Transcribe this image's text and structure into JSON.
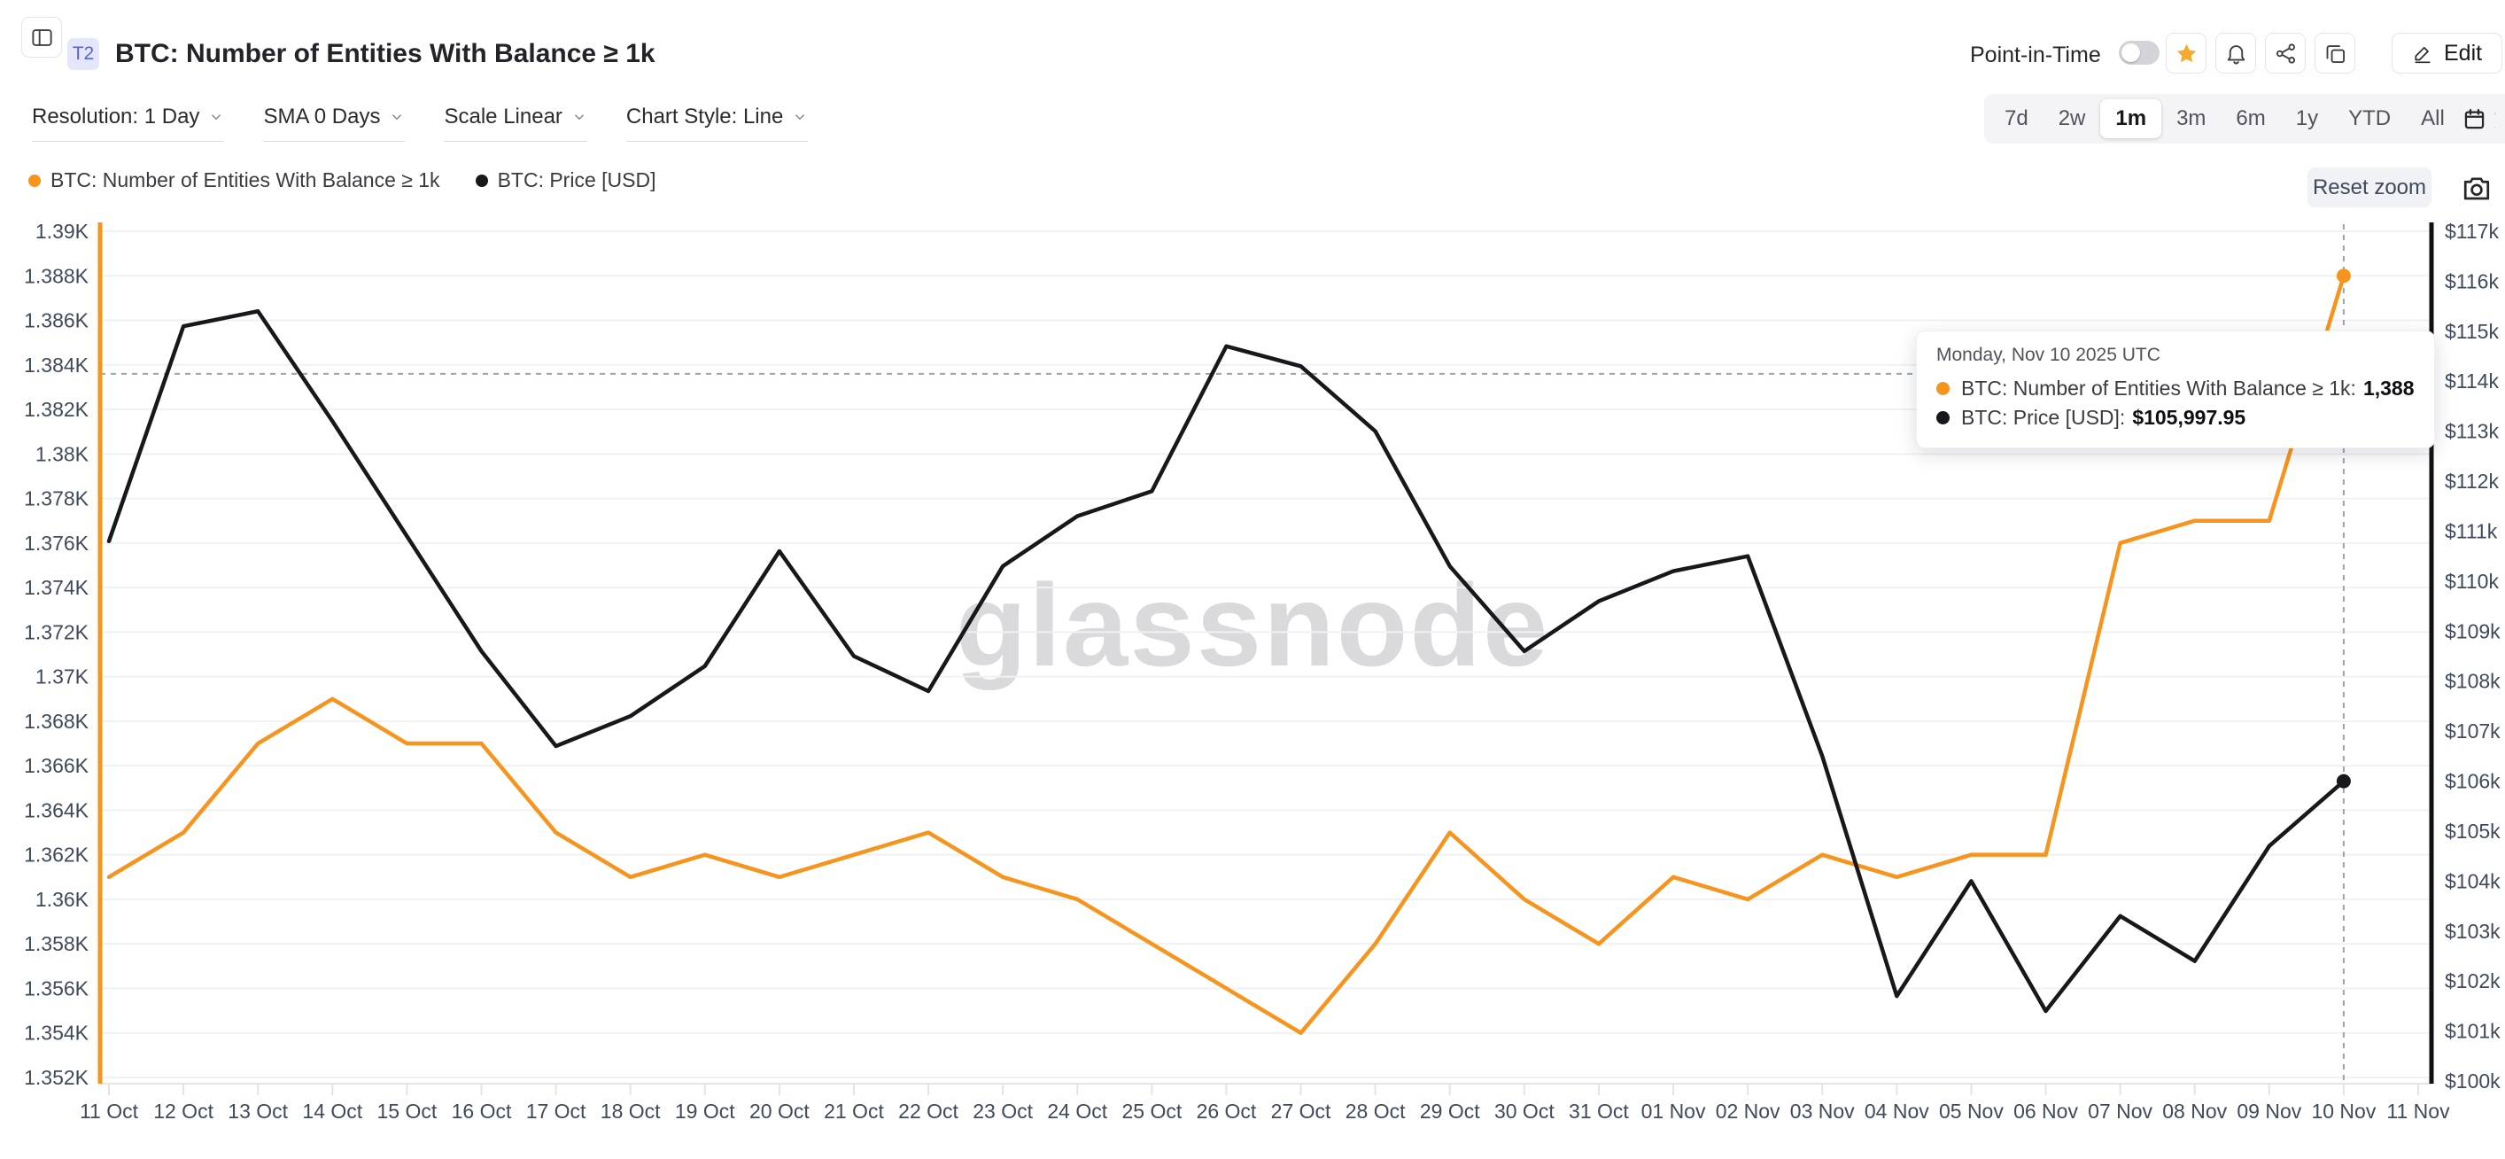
{
  "header": {
    "badge": "T2",
    "title": "BTC: Number of Entities With Balance ≥ 1k",
    "point_in_time_label": "Point-in-Time",
    "edit_label": "Edit"
  },
  "toolbar": {
    "resolution": "Resolution: 1 Day",
    "sma": "SMA 0 Days",
    "scale": "Scale Linear",
    "chart_style": "Chart Style: Line"
  },
  "ranges": {
    "options": [
      "7d",
      "2w",
      "1m",
      "3m",
      "6m",
      "1y",
      "YTD",
      "All"
    ],
    "selected": "1m"
  },
  "legend": [
    {
      "label": "BTC: Number of Entities With Balance ≥ 1k",
      "color": "#f7941d"
    },
    {
      "label": "BTC: Price [USD]",
      "color": "#17171c"
    }
  ],
  "reset_zoom_label": "Reset zoom",
  "watermark": "glassnode",
  "tooltip": {
    "date": "Monday, Nov 10 2025 UTC",
    "rows": [
      {
        "label": "BTC: Number of Entities With Balance ≥ 1k:",
        "value": "1,388",
        "color": "#f7941d"
      },
      {
        "label": "BTC: Price [USD]:",
        "value": "$105,997.95",
        "color": "#17171c"
      }
    ]
  },
  "chart_data": {
    "type": "line",
    "categories": [
      "11 Oct",
      "12 Oct",
      "13 Oct",
      "14 Oct",
      "15 Oct",
      "16 Oct",
      "17 Oct",
      "18 Oct",
      "19 Oct",
      "20 Oct",
      "21 Oct",
      "22 Oct",
      "23 Oct",
      "24 Oct",
      "25 Oct",
      "26 Oct",
      "27 Oct",
      "28 Oct",
      "29 Oct",
      "30 Oct",
      "31 Oct",
      "01 Nov",
      "02 Nov",
      "03 Nov",
      "04 Nov",
      "05 Nov",
      "06 Nov",
      "07 Nov",
      "08 Nov",
      "09 Nov",
      "10 Nov",
      "11 Nov"
    ],
    "series": [
      {
        "name": "BTC: Number of Entities With Balance ≥ 1k",
        "color": "#f7941d",
        "axis": "left",
        "values": [
          1361,
          1363,
          1367,
          1369,
          1367,
          1367,
          1363,
          1361,
          1362,
          1361,
          1362,
          1363,
          1361,
          1360,
          1358,
          1356,
          1354,
          1358,
          1363,
          1360,
          1358,
          1361,
          1360,
          1362,
          1361,
          1362,
          1362,
          1376,
          1377,
          1377,
          1388
        ]
      },
      {
        "name": "BTC: Price [USD]",
        "color": "#17171c",
        "axis": "right",
        "values": [
          110800,
          115100,
          115400,
          113200,
          110900,
          108600,
          106700,
          107300,
          108300,
          110600,
          108500,
          107800,
          110300,
          111300,
          111800,
          114700,
          114300,
          113000,
          110300,
          108600,
          109600,
          110200,
          110500,
          106500,
          101700,
          104000,
          101400,
          103300,
          102400,
          104700,
          105997.95
        ]
      }
    ],
    "left_axis": {
      "min": 1352,
      "max": 1390,
      "ticks": [
        "1.39K",
        "1.388K",
        "1.386K",
        "1.384K",
        "1.382K",
        "1.38K",
        "1.378K",
        "1.376K",
        "1.374K",
        "1.372K",
        "1.37K",
        "1.368K",
        "1.366K",
        "1.364K",
        "1.362K",
        "1.36K",
        "1.358K",
        "1.356K",
        "1.354K",
        "1.352K"
      ]
    },
    "right_axis": {
      "min": 100000,
      "max": 117000,
      "ticks": [
        "$117k",
        "$116k",
        "$115k",
        "$114k",
        "$113k",
        "$112k",
        "$111k",
        "$110k",
        "$109k",
        "$108k",
        "$107k",
        "$106k",
        "$105k",
        "$104k",
        "$103k",
        "$102k",
        "$101k",
        "$100k"
      ]
    },
    "grid": true,
    "legend_position": "top-left",
    "crosshair": {
      "x_index": 30,
      "left_axis_value": 1383.6
    }
  }
}
